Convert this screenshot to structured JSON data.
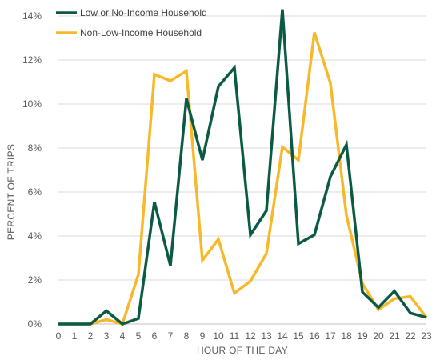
{
  "chart_data": {
    "type": "line",
    "title": "",
    "xlabel": "HOUR OF THE DAY",
    "ylabel": "PERCENT OF TRIPS",
    "x": [
      0,
      1,
      2,
      3,
      4,
      5,
      6,
      7,
      8,
      9,
      10,
      11,
      12,
      13,
      14,
      15,
      16,
      17,
      18,
      19,
      20,
      21,
      22,
      23
    ],
    "x_tick_labels": [
      "0",
      "1",
      "2",
      "3",
      "4",
      "5",
      "6",
      "7",
      "8",
      "9",
      "10",
      "11",
      "12",
      "13",
      "14",
      "15",
      "16",
      "17",
      "18",
      "19",
      "20",
      "21",
      "22",
      "23"
    ],
    "y_tick_labels": [
      "0%",
      "2%",
      "4%",
      "6%",
      "8%",
      "10%",
      "12%",
      "14%"
    ],
    "y_ticks": [
      0,
      2,
      4,
      6,
      8,
      10,
      12,
      14
    ],
    "ylim": [
      0,
      14
    ],
    "grid": true,
    "legend_position": "top-left",
    "series": [
      {
        "name": "Low or No-Income Household",
        "color": "#0a5a45",
        "values": [
          0,
          0,
          0,
          0.6,
          0,
          0.25,
          5.55,
          2.65,
          10.25,
          7.45,
          10.8,
          11.65,
          4.05,
          5.15,
          14.3,
          3.65,
          4.05,
          6.7,
          8.15,
          1.45,
          0.75,
          1.5,
          0.5,
          0.3
        ]
      },
      {
        "name": "Non-Low-Income Household",
        "color": "#f7b92a",
        "values": [
          0,
          0,
          0,
          0.2,
          0,
          2.25,
          11.35,
          11.05,
          11.5,
          2.9,
          3.85,
          1.4,
          1.95,
          3.2,
          8.05,
          7.45,
          13.25,
          10.95,
          4.95,
          1.85,
          0.65,
          1.15,
          1.25,
          0.3
        ]
      }
    ]
  }
}
